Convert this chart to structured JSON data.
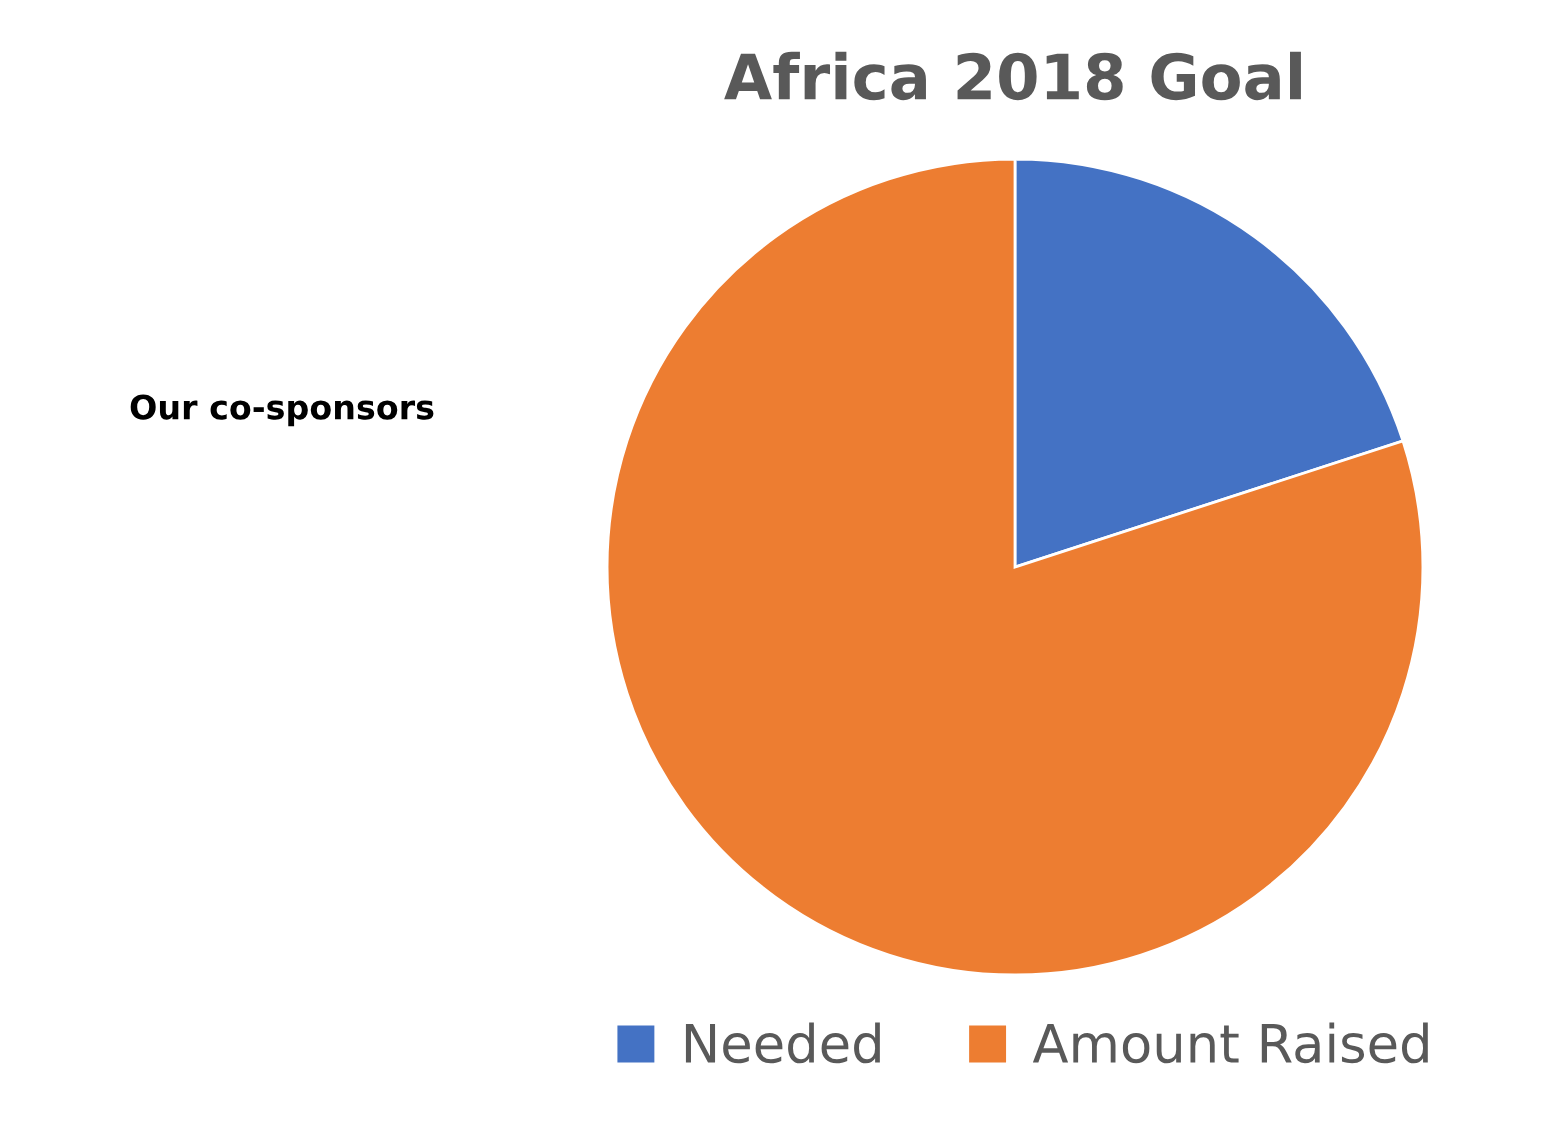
{
  "chart_data": {
    "type": "pie",
    "title": "Africa 2018 Goal",
    "categories": [
      "Needed",
      "Amount Raised"
    ],
    "values": [
      20,
      80
    ],
    "colors": [
      "#4472c4",
      "#ed7d31"
    ],
    "legend": "bottom",
    "annotations": [
      "Our co-sponsors"
    ]
  }
}
